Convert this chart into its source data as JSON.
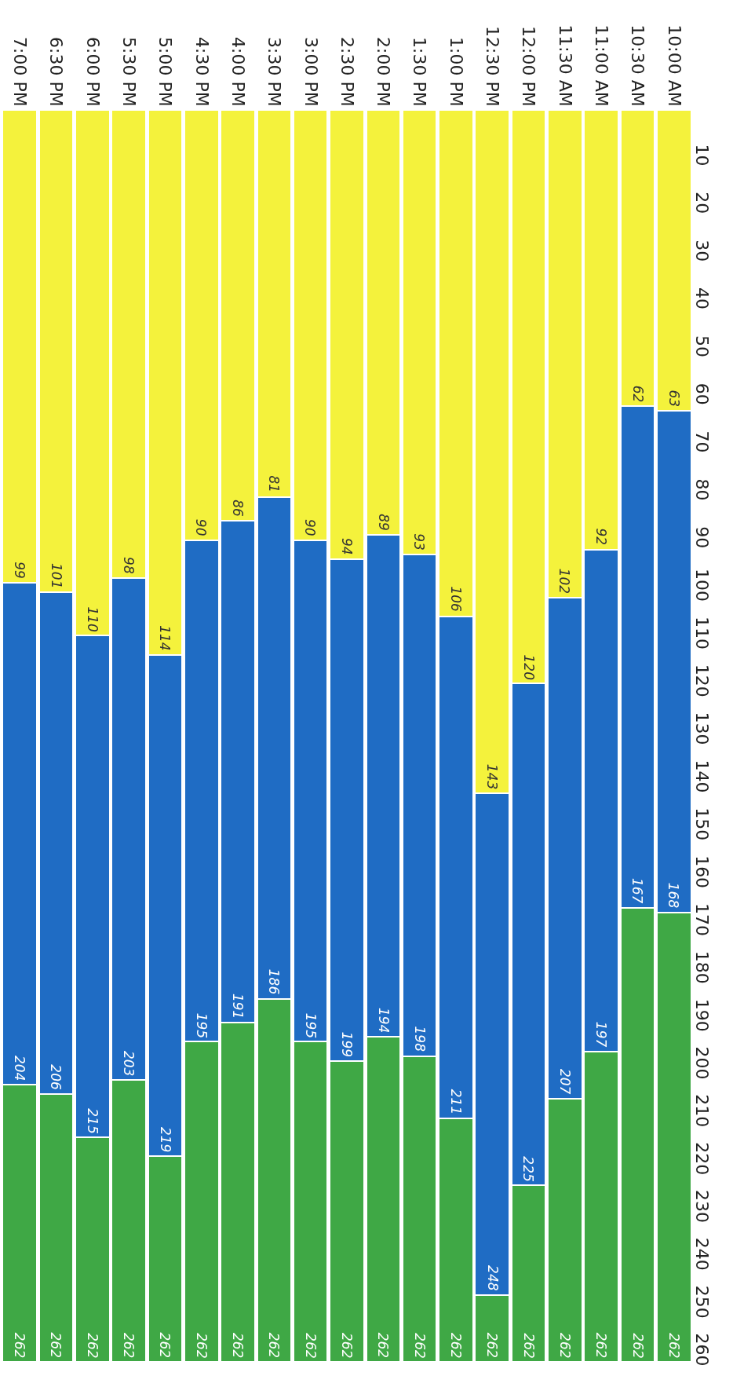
{
  "chart_data": {
    "type": "bar",
    "stacked": true,
    "categories": [
      "7:00 PM",
      "6:30 PM",
      "6:00 PM",
      "5:30 PM",
      "5:00 PM",
      "4:30 PM",
      "4:00 PM",
      "3:30 PM",
      "3:00 PM",
      "2:30 PM",
      "2:00 PM",
      "1:30 PM",
      "1:00 PM",
      "12:30 PM",
      "12:00 PM",
      "11:30 AM",
      "11:00 AM",
      "10:30 AM",
      "10:00 AM"
    ],
    "series": [
      {
        "color": "#f4f23c",
        "values": [
          99,
          101,
          110,
          98,
          114,
          90,
          86,
          81,
          90,
          94,
          89,
          93,
          106,
          143,
          120,
          102,
          92,
          62,
          63
        ]
      },
      {
        "color": "#1f6cc4",
        "values": [
          105,
          105,
          105,
          105,
          105,
          105,
          105,
          105,
          105,
          105,
          105,
          105,
          105,
          105,
          105,
          105,
          105,
          105,
          105
        ]
      },
      {
        "color": "#3fa845",
        "values": [
          58,
          56,
          47,
          59,
          43,
          67,
          71,
          76,
          67,
          63,
          68,
          64,
          51,
          14,
          37,
          55,
          65,
          95,
          94
        ]
      }
    ],
    "annotations": [
      {
        "text": "99",
        "x": "7:00 PM",
        "y": 99
      },
      {
        "text": "101",
        "x": "6:30 PM",
        "y": 101
      },
      {
        "text": "110",
        "x": "6:00 PM",
        "y": 110
      },
      {
        "text": "98",
        "x": "5:30 PM",
        "y": 98
      },
      {
        "text": "114",
        "x": "5:00 PM",
        "y": 114
      },
      {
        "text": "90",
        "x": "4:30 PM",
        "y": 90
      },
      {
        "text": "86",
        "x": "4:00 PM",
        "y": 86
      },
      {
        "text": "81",
        "x": "3:30 PM",
        "y": 81
      },
      {
        "text": "90",
        "x": "3:00 PM",
        "y": 90
      },
      {
        "text": "94",
        "x": "2:30 PM",
        "y": 94
      },
      {
        "text": "89",
        "x": "2:00 PM",
        "y": 89
      },
      {
        "text": "93",
        "x": "1:30 PM",
        "y": 93
      },
      {
        "text": "106",
        "x": "1:00 PM",
        "y": 106
      },
      {
        "text": "143",
        "x": "12:30 PM",
        "y": 143
      },
      {
        "text": "120",
        "x": "12:00 PM",
        "y": 120
      },
      {
        "text": "102",
        "x": "11:30 AM",
        "y": 102
      },
      {
        "text": "92",
        "x": "11:00 AM",
        "y": 92
      },
      {
        "text": "62",
        "x": "10:30 AM",
        "y": 62
      },
      {
        "text": "63",
        "x": "10:00 AM",
        "y": 63
      },
      {
        "text": "204",
        "x": "7:00 PM",
        "y": 204
      },
      {
        "text": "206",
        "x": "6:30 PM",
        "y": 206
      },
      {
        "text": "215",
        "x": "6:00 PM",
        "y": 215
      },
      {
        "text": "203",
        "x": "5:30 PM",
        "y": 203
      },
      {
        "text": "219",
        "x": "5:00 PM",
        "y": 219
      },
      {
        "text": "195",
        "x": "4:30 PM",
        "y": 195
      },
      {
        "text": "191",
        "x": "4:00 PM",
        "y": 191
      },
      {
        "text": "186",
        "x": "3:30 PM",
        "y": 186
      },
      {
        "text": "195",
        "x": "3:00 PM",
        "y": 195
      },
      {
        "text": "199",
        "x": "2:30 PM",
        "y": 199
      },
      {
        "text": "194",
        "x": "2:00 PM",
        "y": 194
      },
      {
        "text": "198",
        "x": "1:30 PM",
        "y": 198
      },
      {
        "text": "211",
        "x": "1:00 PM",
        "y": 211
      },
      {
        "text": "248",
        "x": "12:30 PM",
        "y": 248
      },
      {
        "text": "225",
        "x": "12:00 PM",
        "y": 225
      },
      {
        "text": "207",
        "x": "11:30 AM",
        "y": 207
      },
      {
        "text": "197",
        "x": "11:00 AM",
        "y": 197
      },
      {
        "text": "167",
        "x": "10:30 AM",
        "y": 167
      },
      {
        "text": "168",
        "x": "10:00 AM",
        "y": 168
      },
      {
        "text": "262",
        "x": "7:00 PM",
        "y": 262
      },
      {
        "text": "262",
        "x": "6:30 PM",
        "y": 262
      },
      {
        "text": "262",
        "x": "6:00 PM",
        "y": 262
      },
      {
        "text": "262",
        "x": "5:30 PM",
        "y": 262
      },
      {
        "text": "262",
        "x": "5:00 PM",
        "y": 262
      },
      {
        "text": "262",
        "x": "4:30 PM",
        "y": 262
      },
      {
        "text": "262",
        "x": "4:00 PM",
        "y": 262
      },
      {
        "text": "262",
        "x": "3:30 PM",
        "y": 262
      },
      {
        "text": "262",
        "x": "3:00 PM",
        "y": 262
      },
      {
        "text": "262",
        "x": "2:30 PM",
        "y": 262
      },
      {
        "text": "262",
        "x": "2:00 PM",
        "y": 262
      },
      {
        "text": "262",
        "x": "1:30 PM",
        "y": 262
      },
      {
        "text": "262",
        "x": "1:00 PM",
        "y": 262
      },
      {
        "text": "262",
        "x": "12:30 PM",
        "y": 262
      },
      {
        "text": "262",
        "x": "12:00 PM",
        "y": 262
      },
      {
        "text": "262",
        "x": "11:30 AM",
        "y": 262
      },
      {
        "text": "262",
        "x": "11:00 AM",
        "y": 262
      },
      {
        "text": "262",
        "x": "10:30 AM",
        "y": 262
      },
      {
        "text": "262",
        "x": "10:00 AM",
        "y": 262
      }
    ],
    "ylim": [
      262,
      0
    ],
    "yticks": [
      10,
      20,
      30,
      40,
      50,
      60,
      70,
      80,
      90,
      100,
      110,
      120,
      130,
      140,
      150,
      160,
      170,
      180,
      190,
      200,
      210,
      220,
      230,
      240,
      250,
      260
    ],
    "grid": false
  }
}
